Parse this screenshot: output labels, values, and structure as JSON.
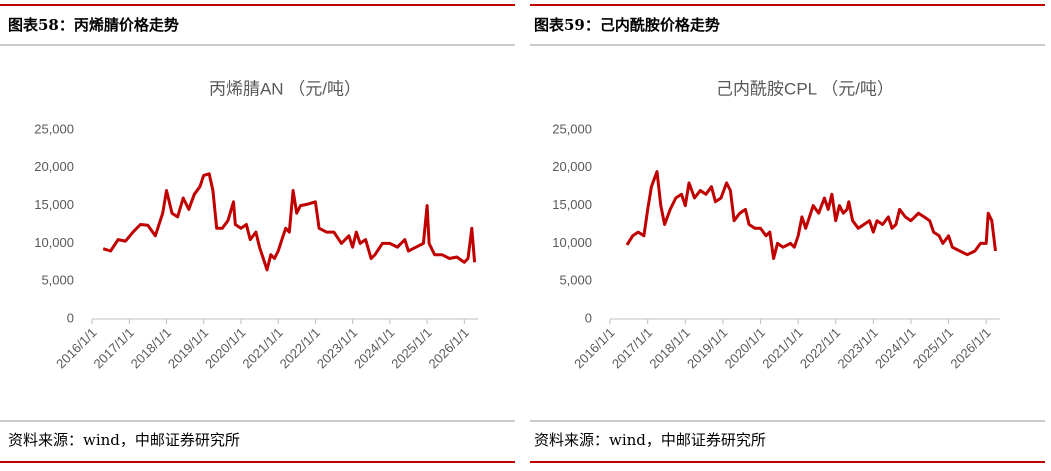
{
  "headers": [
    "图表58：丙烯腈价格走势",
    "图表59：己内酰胺价格走势"
  ],
  "sources": [
    "资料来源：wind，中邮证券研究所",
    "资料来源：wind，中邮证券研究所"
  ],
  "chart_data": [
    {
      "type": "line",
      "title": "丙烯腈AN （元/吨）",
      "color": "#c00000",
      "xlim": [
        "2016-01-01",
        "2026-05-15"
      ],
      "xticks": [
        {
          "value": "2016-01-01",
          "label": "2016/1/1"
        },
        {
          "value": "2017-01-01",
          "label": "2017/1/1"
        },
        {
          "value": "2018-01-01",
          "label": "2018/1/1"
        },
        {
          "value": "2019-01-01",
          "label": "2019/1/1"
        },
        {
          "value": "2020-01-01",
          "label": "2020/1/1"
        },
        {
          "value": "2021-01-01",
          "label": "2021/1/1"
        },
        {
          "value": "2022-01-01",
          "label": "2022/1/1"
        },
        {
          "value": "2023-01-01",
          "label": "2023/1/1"
        },
        {
          "value": "2024-01-01",
          "label": "2024/1/1"
        },
        {
          "value": "2025-01-01",
          "label": "2025/1/1"
        },
        {
          "value": "2026-01-01",
          "label": "2026/1/1"
        }
      ],
      "ylim": [
        0,
        25000
      ],
      "yticks": [
        0,
        {
          "value": 5000,
          "label": "5,000"
        },
        {
          "value": 10000,
          "label": "10,000"
        },
        {
          "value": 15000,
          "label": "15,000"
        },
        {
          "value": 20000,
          "label": "20,000"
        },
        {
          "value": 25000,
          "label": "25,000"
        }
      ],
      "x": [
        "2016-04-20",
        "2016-07-01",
        "2016-09-13",
        "2016-11-25",
        "2017-02-06",
        "2017-04-20",
        "2017-07-01",
        "2017-09-13",
        "2017-11-25",
        "2018-01-01",
        "2018-02-24",
        "2018-04-20",
        "2018-06-14",
        "2018-08-08",
        "2018-10-01",
        "2018-11-25",
        "2019-01-01",
        "2019-02-24",
        "2019-04-01",
        "2019-05-08",
        "2019-07-01",
        "2019-08-26",
        "2019-10-20",
        "2019-11-07",
        "2020-01-01",
        "2020-02-24",
        "2020-04-01",
        "2020-05-27",
        "2020-07-01",
        "2020-08-08",
        "2020-09-13",
        "2020-10-20",
        "2020-11-25",
        "2021-01-01",
        "2021-02-06",
        "2021-03-15",
        "2021-04-20",
        "2021-05-27",
        "2021-07-01",
        "2021-08-08",
        "2021-10-20",
        "2022-01-01",
        "2022-02-06",
        "2022-04-20",
        "2022-07-01",
        "2022-09-13",
        "2022-11-25",
        "2023-01-01",
        "2023-02-06",
        "2023-03-15",
        "2023-05-08",
        "2023-07-01",
        "2023-08-08",
        "2023-10-20",
        "2024-01-01",
        "2024-03-15",
        "2024-05-27",
        "2024-07-01",
        "2024-09-13",
        "2024-11-25",
        "2025-01-01",
        "2025-01-20",
        "2025-03-15",
        "2025-05-27",
        "2025-08-08",
        "2025-10-20",
        "2026-01-01",
        "2026-02-06",
        "2026-03-15",
        "2026-04-12"
      ],
      "values": [
        9300,
        9000,
        10500,
        10300,
        11500,
        12500,
        12400,
        11000,
        14000,
        17000,
        14000,
        13500,
        16000,
        14500,
        16500,
        17500,
        19000,
        19200,
        17000,
        12000,
        12000,
        13000,
        15500,
        12500,
        12000,
        12500,
        10500,
        11500,
        9500,
        8000,
        6500,
        8500,
        8000,
        9000,
        10500,
        12000,
        11500,
        17000,
        14000,
        15000,
        15200,
        15500,
        12000,
        11500,
        11500,
        10000,
        11000,
        9500,
        11500,
        10000,
        10500,
        8000,
        8500,
        10000,
        10000,
        9500,
        10500,
        9000,
        9500,
        10000,
        15000,
        10000,
        8500,
        8500,
        8000,
        8200,
        7500,
        8000,
        12000,
        7500
      ]
    },
    {
      "type": "line",
      "title": "己内酰胺CPL （元/吨）",
      "color": "#c00000",
      "xlim": [
        "2016-01-01",
        "2026-05-15"
      ],
      "xticks": [
        {
          "value": "2016-01-01",
          "label": "2016/1/1"
        },
        {
          "value": "2017-01-01",
          "label": "2017/1/1"
        },
        {
          "value": "2018-01-01",
          "label": "2018/1/1"
        },
        {
          "value": "2019-01-01",
          "label": "2019/1/1"
        },
        {
          "value": "2020-01-01",
          "label": "2020/1/1"
        },
        {
          "value": "2021-01-01",
          "label": "2021/1/1"
        },
        {
          "value": "2022-01-01",
          "label": "2022/1/1"
        },
        {
          "value": "2023-01-01",
          "label": "2023/1/1"
        },
        {
          "value": "2024-01-01",
          "label": "2024/1/1"
        },
        {
          "value": "2025-01-01",
          "label": "2025/1/1"
        },
        {
          "value": "2026-01-01",
          "label": "2026/1/1"
        }
      ],
      "ylim": [
        0,
        25000
      ],
      "yticks": [
        0,
        {
          "value": 5000,
          "label": "5,000"
        },
        {
          "value": 10000,
          "label": "10,000"
        },
        {
          "value": 15000,
          "label": "15,000"
        },
        {
          "value": 20000,
          "label": "20,000"
        },
        {
          "value": 25000,
          "label": "25,000"
        }
      ],
      "x": [
        "2016-06-14",
        "2016-08-08",
        "2016-10-01",
        "2016-11-25",
        "2017-01-01",
        "2017-02-06",
        "2017-04-01",
        "2017-05-08",
        "2017-06-14",
        "2017-08-08",
        "2017-10-01",
        "2017-11-25",
        "2018-01-01",
        "2018-02-06",
        "2018-04-01",
        "2018-05-27",
        "2018-07-20",
        "2018-09-13",
        "2018-10-20",
        "2018-12-14",
        "2019-02-06",
        "2019-03-15",
        "2019-04-20",
        "2019-06-14",
        "2019-08-08",
        "2019-09-13",
        "2019-11-07",
        "2020-01-01",
        "2020-02-24",
        "2020-04-01",
        "2020-05-08",
        "2020-06-14",
        "2020-08-08",
        "2020-10-20",
        "2020-11-25",
        "2021-01-01",
        "2021-02-06",
        "2021-03-15",
        "2021-05-27",
        "2021-07-20",
        "2021-09-13",
        "2021-10-20",
        "2021-11-25",
        "2022-01-01",
        "2022-02-06",
        "2022-03-15",
        "2022-04-20",
        "2022-05-08",
        "2022-06-14",
        "2022-08-08",
        "2022-10-01",
        "2022-11-25",
        "2023-01-01",
        "2023-02-06",
        "2023-04-01",
        "2023-05-27",
        "2023-07-01",
        "2023-08-08",
        "2023-09-13",
        "2023-11-07",
        "2024-01-01",
        "2024-03-15",
        "2024-05-08",
        "2024-07-01",
        "2024-08-08",
        "2024-10-01",
        "2024-11-07",
        "2025-01-01",
        "2025-02-06",
        "2025-04-20",
        "2025-07-01",
        "2025-09-13",
        "2025-11-07",
        "2026-01-01",
        "2026-01-20",
        "2026-02-24",
        "2026-04-01"
      ],
      "values": [
        9800,
        11000,
        11500,
        11000,
        14500,
        17500,
        19500,
        15000,
        12500,
        14500,
        16000,
        16500,
        15000,
        18000,
        16000,
        17000,
        16500,
        17500,
        15500,
        16000,
        18000,
        17000,
        13000,
        14000,
        14500,
        12500,
        12000,
        12000,
        11000,
        11500,
        8000,
        10000,
        9500,
        10000,
        9500,
        11000,
        13500,
        12000,
        15000,
        14000,
        16000,
        14500,
        16500,
        13000,
        15000,
        14000,
        14500,
        15500,
        13000,
        12000,
        12500,
        13000,
        11500,
        13000,
        12500,
        13500,
        12000,
        12500,
        14500,
        13500,
        13000,
        14000,
        13500,
        13000,
        11500,
        11000,
        10000,
        11000,
        9500,
        9000,
        8500,
        9000,
        10000,
        10000,
        14000,
        13000,
        9000
      ]
    }
  ]
}
